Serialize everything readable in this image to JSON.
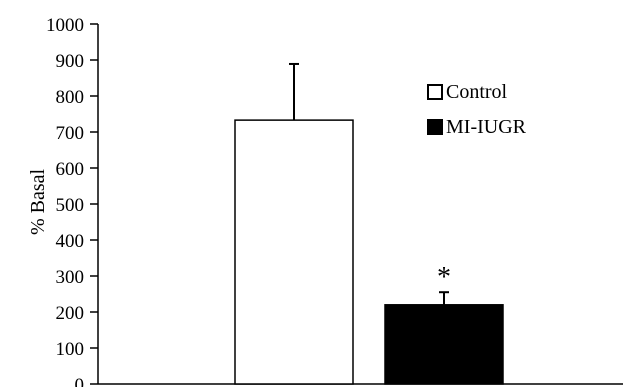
{
  "chart_data": {
    "type": "bar",
    "categories": [
      "Control",
      "MI-IUGR"
    ],
    "series": [
      {
        "name": "Control",
        "value": 733,
        "error": 156,
        "fill": "#ffffff",
        "stroke": "#000000"
      },
      {
        "name": "MI-IUGR",
        "value": 220,
        "error": 35,
        "fill": "#000000",
        "stroke": "#000000"
      }
    ],
    "ylabel": "% Basal",
    "ylim": [
      0,
      1000
    ],
    "yticks": [
      0,
      100,
      200,
      300,
      400,
      500,
      600,
      700,
      800,
      900,
      1000
    ],
    "legend": {
      "placement": "upper-right",
      "entries": [
        "Control",
        "MI-IUGR"
      ]
    },
    "annotations": [
      {
        "text": "*",
        "series": "MI-IUGR"
      }
    ],
    "grid": false
  }
}
